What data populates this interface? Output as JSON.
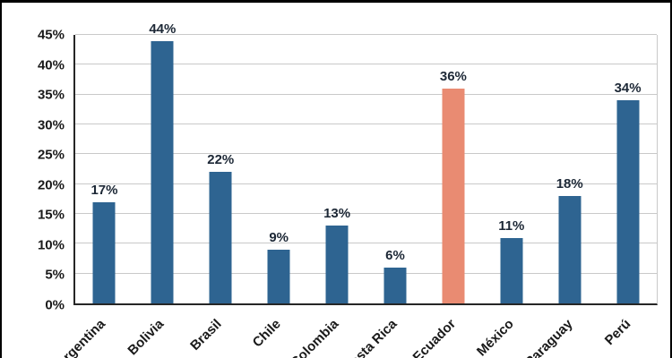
{
  "chart_data": {
    "type": "bar",
    "categories": [
      "Argentina",
      "Bolivia",
      "Brasil",
      "Chile",
      "Colombia",
      "Costa Rica",
      "Ecuador",
      "México",
      "Paraguay",
      "Perú"
    ],
    "values": [
      17,
      44,
      22,
      9,
      13,
      6,
      36,
      11,
      18,
      34
    ],
    "value_labels": [
      "17%",
      "44%",
      "22%",
      "9%",
      "13%",
      "6%",
      "36%",
      "11%",
      "18%",
      "34%"
    ],
    "highlight_index": 6,
    "title": "",
    "xlabel": "",
    "ylabel": "",
    "ylim": [
      0,
      45
    ],
    "ytick_step": 5,
    "ytick_labels": [
      "0%",
      "5%",
      "10%",
      "15%",
      "20%",
      "25%",
      "30%",
      "35%",
      "40%",
      "45%"
    ],
    "grid": true,
    "legend": "none",
    "colors": {
      "bar": "#2E6491",
      "highlight": "#E98B72",
      "gridline": "#c9c9c9",
      "axis": "#262626",
      "label_text": "#1d2836",
      "frame_border": "#000000"
    }
  }
}
